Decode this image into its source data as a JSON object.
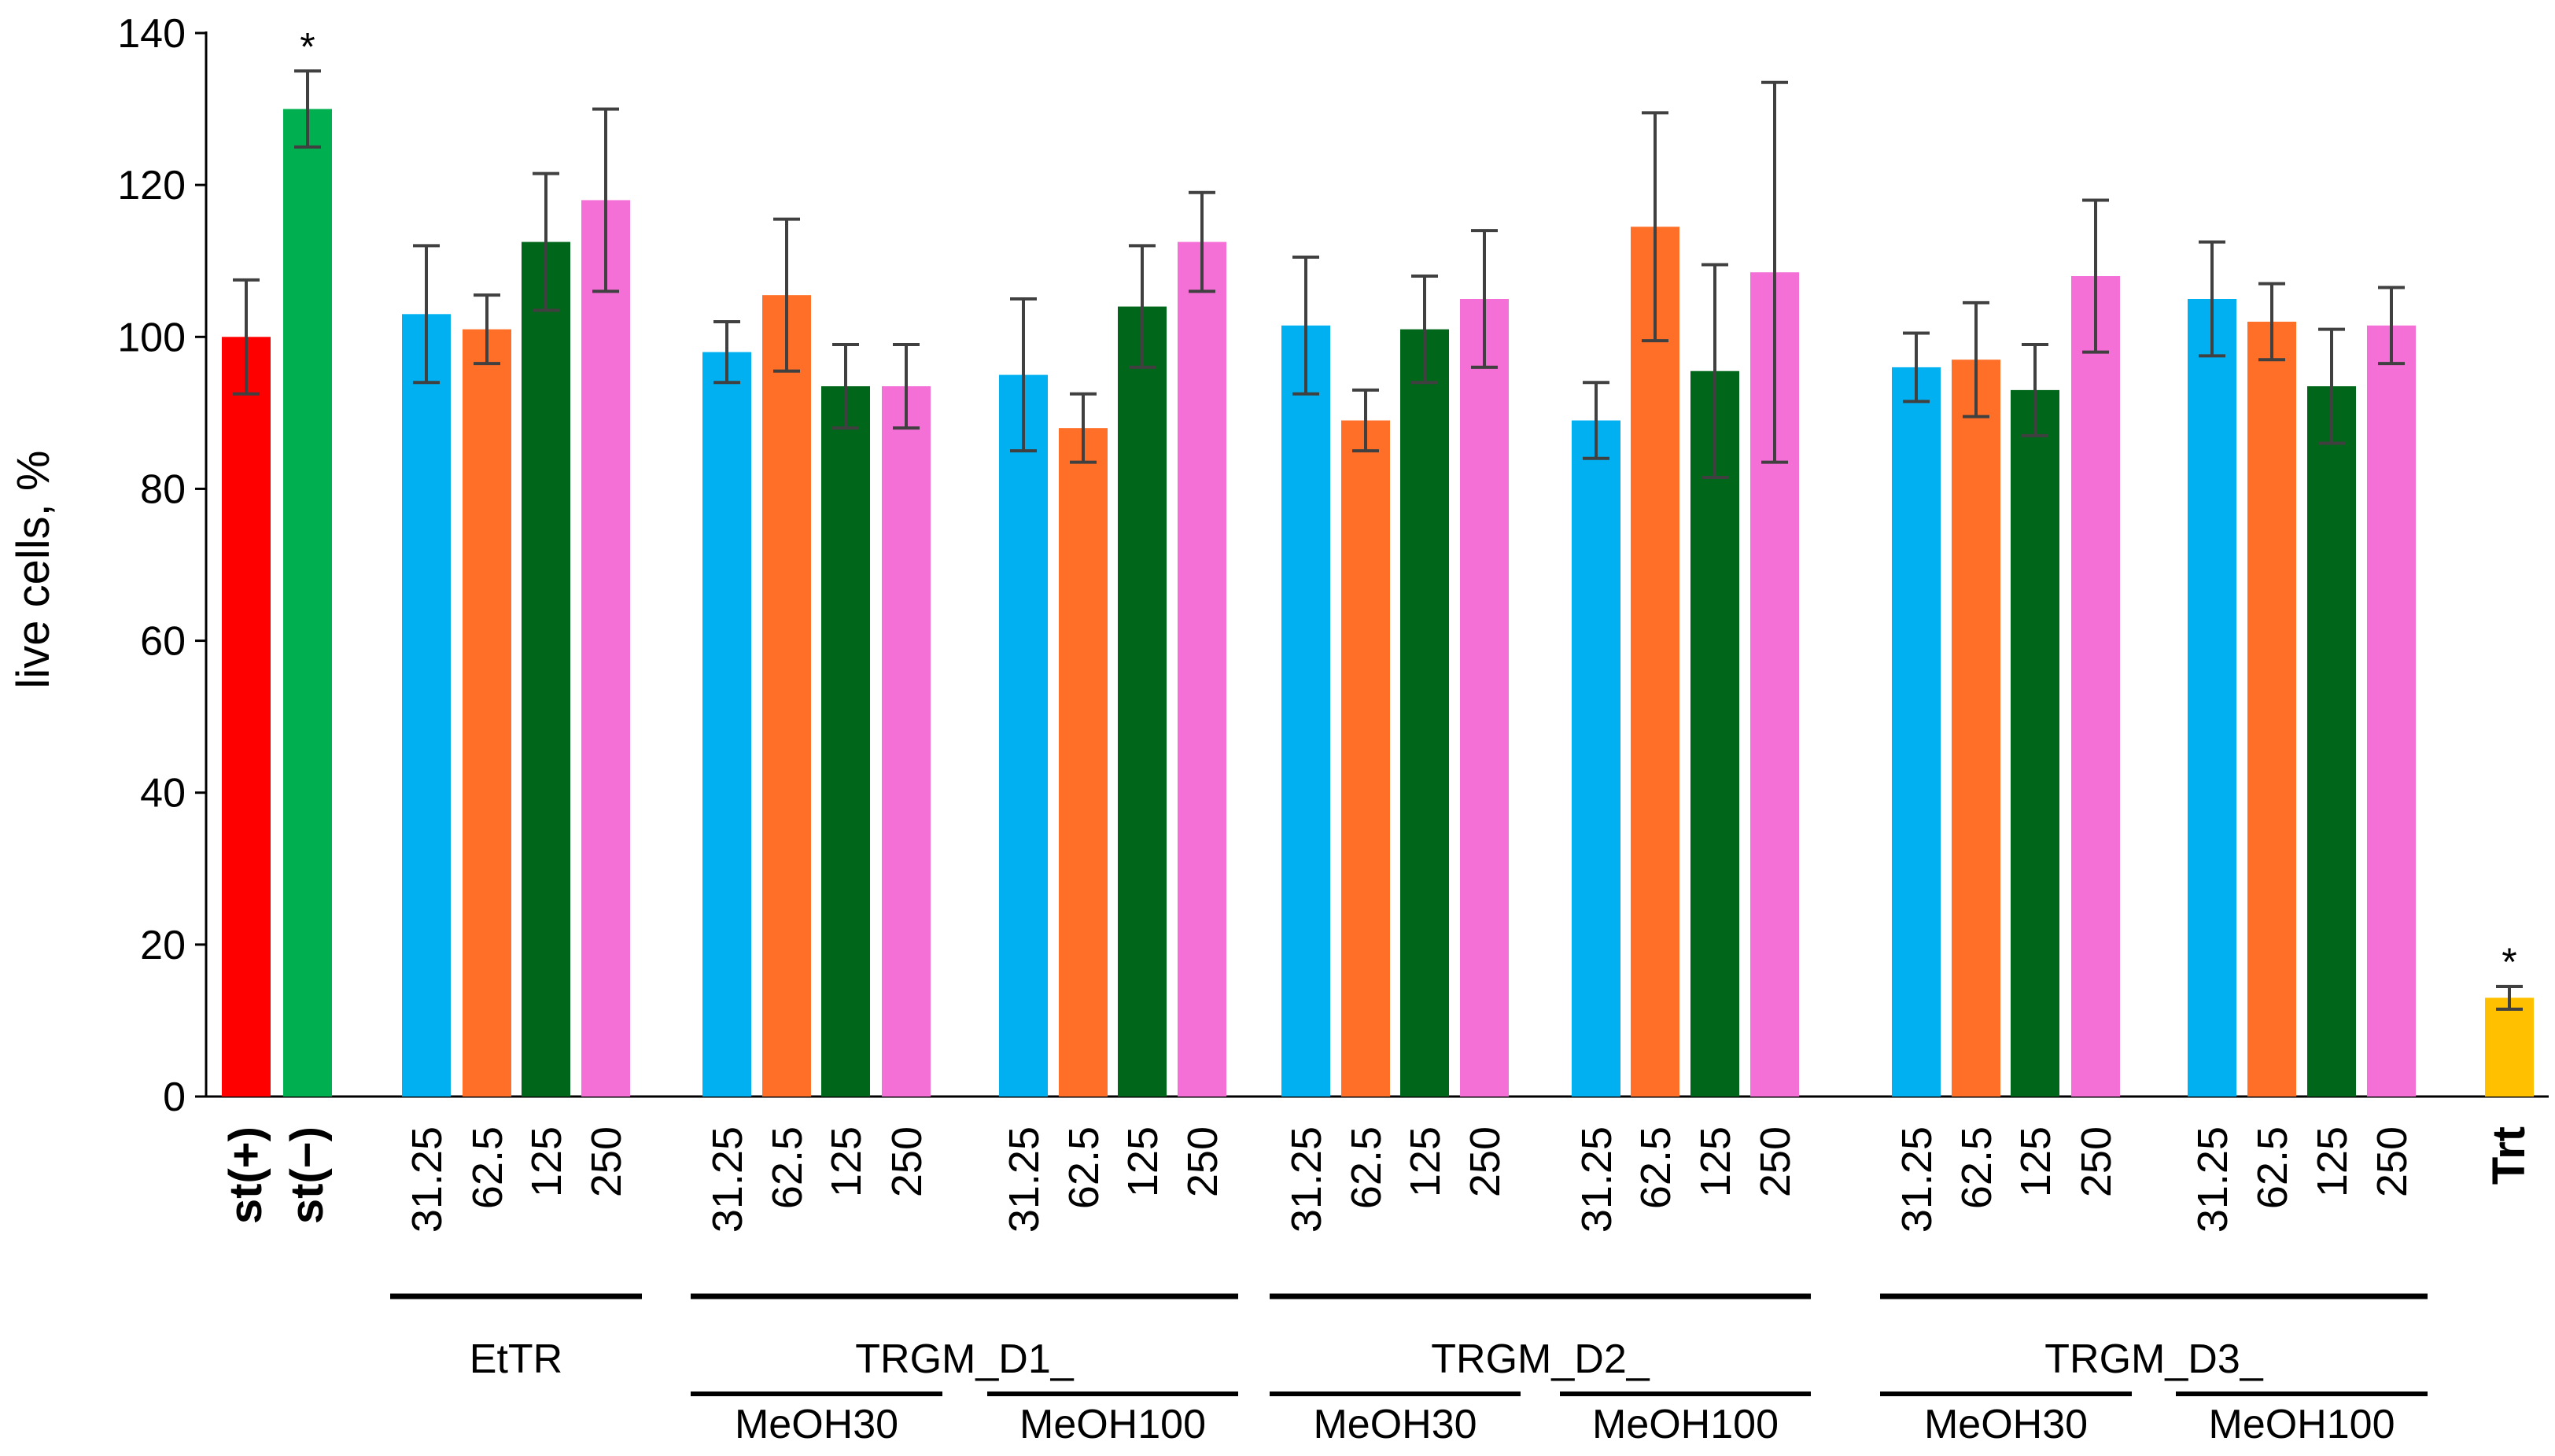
{
  "chart_data": {
    "type": "bar",
    "ylabel": "live cells, %",
    "ylim": [
      0,
      140
    ],
    "yticks": [
      0,
      20,
      40,
      60,
      80,
      100,
      120,
      140
    ],
    "colors": {
      "st_plus": "#ff0000",
      "st_minus": "#00b050",
      "c31": "#00b0f0",
      "c62": "#ff6f28",
      "c125": "#006619",
      "c250": "#f46fd6",
      "trt": "#ffc000",
      "error": "#404040"
    },
    "bars": [
      {
        "label": "st(+)",
        "value": 100,
        "error": 7.5,
        "color": "st_plus",
        "marker": ""
      },
      {
        "label": "st(−)",
        "value": 130,
        "error": 5,
        "color": "st_minus",
        "marker": "*"
      },
      {
        "label": "31.25",
        "value": 103,
        "error": 9,
        "color": "c31",
        "marker": ""
      },
      {
        "label": "62.5",
        "value": 101,
        "error": 4.5,
        "color": "c62",
        "marker": ""
      },
      {
        "label": "125",
        "value": 112.5,
        "error": 9,
        "color": "c125",
        "marker": ""
      },
      {
        "label": "250",
        "value": 118,
        "error": 12,
        "color": "c250",
        "marker": ""
      },
      {
        "label": "31.25",
        "value": 98,
        "error": 4,
        "color": "c31",
        "marker": ""
      },
      {
        "label": "62.5",
        "value": 105.5,
        "error": 10,
        "color": "c62",
        "marker": ""
      },
      {
        "label": "125",
        "value": 93.5,
        "error": 5.5,
        "color": "c125",
        "marker": ""
      },
      {
        "label": "250",
        "value": 93.5,
        "error": 5.5,
        "color": "c250",
        "marker": ""
      },
      {
        "label": "31.25",
        "value": 95,
        "error": 10,
        "color": "c31",
        "marker": ""
      },
      {
        "label": "62.5",
        "value": 88,
        "error": 4.5,
        "color": "c62",
        "marker": ""
      },
      {
        "label": "125",
        "value": 104,
        "error": 8,
        "color": "c125",
        "marker": ""
      },
      {
        "label": "250",
        "value": 112.5,
        "error": 6.5,
        "color": "c250",
        "marker": ""
      },
      {
        "label": "31.25",
        "value": 101.5,
        "error": 9,
        "color": "c31",
        "marker": ""
      },
      {
        "label": "62.5",
        "value": 89,
        "error": 4,
        "color": "c62",
        "marker": ""
      },
      {
        "label": "125",
        "value": 101,
        "error": 7,
        "color": "c125",
        "marker": ""
      },
      {
        "label": "250",
        "value": 105,
        "error": 9,
        "color": "c250",
        "marker": ""
      },
      {
        "label": "31.25",
        "value": 89,
        "error": 5,
        "color": "c31",
        "marker": ""
      },
      {
        "label": "62.5",
        "value": 114.5,
        "error": 15,
        "color": "c62",
        "marker": ""
      },
      {
        "label": "125",
        "value": 95.5,
        "error": 14,
        "color": "c125",
        "marker": ""
      },
      {
        "label": "250",
        "value": 108.5,
        "error": 25,
        "color": "c250",
        "marker": ""
      },
      {
        "label": "31.25",
        "value": 96,
        "error": 4.5,
        "color": "c31",
        "marker": ""
      },
      {
        "label": "62.5",
        "value": 97,
        "error": 7.5,
        "color": "c62",
        "marker": ""
      },
      {
        "label": "125",
        "value": 93,
        "error": 6,
        "color": "c125",
        "marker": ""
      },
      {
        "label": "250",
        "value": 108,
        "error": 10,
        "color": "c250",
        "marker": ""
      },
      {
        "label": "31.25",
        "value": 105,
        "error": 7.5,
        "color": "c31",
        "marker": ""
      },
      {
        "label": "62.5",
        "value": 102,
        "error": 5,
        "color": "c62",
        "marker": ""
      },
      {
        "label": "125",
        "value": 93.5,
        "error": 7.5,
        "color": "c125",
        "marker": ""
      },
      {
        "label": "250",
        "value": 101.5,
        "error": 5,
        "color": "c250",
        "marker": ""
      },
      {
        "label": "Trt",
        "value": 13,
        "error": 1.5,
        "color": "trt",
        "marker": "*"
      }
    ],
    "groups": [
      {
        "label": "EtTR",
        "first": 2,
        "last": 5,
        "level": 1
      },
      {
        "label": "TRGM_D1_",
        "first": 6,
        "last": 13,
        "level": 1
      },
      {
        "label": "TRGM_D2_",
        "first": 14,
        "last": 21,
        "level": 1
      },
      {
        "label": "TRGM_D3_",
        "first": 22,
        "last": 29,
        "level": 1
      },
      {
        "label": "MeOH30",
        "first": 6,
        "last": 9,
        "level": 2
      },
      {
        "label": "MeOH100",
        "first": 10,
        "last": 13,
        "level": 2
      },
      {
        "label": "MeOH30",
        "first": 14,
        "last": 17,
        "level": 2
      },
      {
        "label": "MeOH100",
        "first": 18,
        "last": 21,
        "level": 2
      },
      {
        "label": "MeOH30",
        "first": 22,
        "last": 25,
        "level": 2
      },
      {
        "label": "MeOH100",
        "first": 26,
        "last": 29,
        "level": 2
      }
    ]
  }
}
